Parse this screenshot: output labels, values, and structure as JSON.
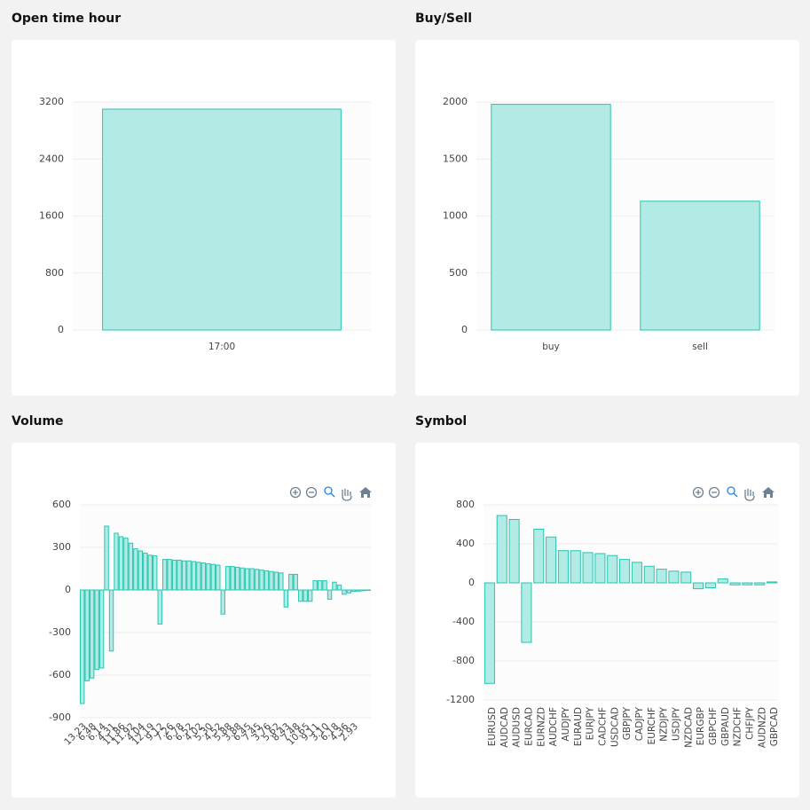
{
  "chart_data": [
    {
      "type": "bar",
      "title": "Open time hour",
      "categories": [
        "17:00"
      ],
      "values": [
        3100
      ],
      "ylim": [
        0,
        3200
      ],
      "yticks": [
        0,
        800,
        1600,
        2400,
        3200
      ],
      "color": "#b2ebe5",
      "grid": true
    },
    {
      "type": "bar",
      "title": "Buy/Sell",
      "categories": [
        "buy",
        "sell"
      ],
      "values": [
        1980,
        1130
      ],
      "ylim": [
        0,
        2000
      ],
      "yticks": [
        0,
        500,
        1000,
        1500,
        2000
      ],
      "color": "#b2ebe5",
      "grid": true
    },
    {
      "type": "bar",
      "title": "Volume",
      "categories": [
        "13.23",
        null,
        "6.48",
        null,
        "6.14",
        null,
        "4.31",
        null,
        "11.86",
        null,
        "11.92",
        null,
        "4.04",
        null,
        "12.19",
        null,
        "9.12",
        null,
        "7.26",
        null,
        "6.78",
        null,
        "6.52",
        null,
        "4.02",
        null,
        "5.30",
        null,
        "4.52",
        null,
        "5.88",
        null,
        "3.88",
        null,
        "6.45",
        null,
        "7.45",
        null,
        "3.76",
        null,
        "5.62",
        null,
        "8.43",
        null,
        "7.48",
        null,
        "10.65",
        null,
        "9.11",
        null,
        "3.10",
        null,
        "6.18",
        null,
        "4.36",
        null,
        "2.93",
        null,
        null,
        null
      ],
      "values": [
        -800,
        -640,
        -620,
        -560,
        -550,
        450,
        -430,
        400,
        375,
        365,
        330,
        290,
        275,
        260,
        245,
        240,
        -240,
        215,
        215,
        210,
        210,
        205,
        205,
        200,
        195,
        190,
        185,
        180,
        175,
        -170,
        165,
        165,
        160,
        155,
        150,
        150,
        145,
        140,
        135,
        130,
        125,
        120,
        -120,
        110,
        110,
        -80,
        -80,
        -80,
        65,
        65,
        65,
        -65,
        55,
        35,
        -30,
        -20,
        -10,
        -8,
        -5,
        -3
      ],
      "ylim": [
        -900,
        600
      ],
      "yticks": [
        -900,
        -600,
        -300,
        0,
        300,
        600
      ],
      "color": "#b2ebe5",
      "grid": true
    },
    {
      "type": "bar",
      "title": "Symbol",
      "categories": [
        "EURUSD",
        "AUDCAD",
        "AUDUSD",
        "EURCAD",
        "EURNZD",
        "AUDCHF",
        "AUDJPY",
        "EURAUD",
        "EURJPY",
        "CADCHF",
        "USDCAD",
        "GBPJPY",
        "CADJPY",
        "EURCHF",
        "NZDJPY",
        "USDJPY",
        "NZDCAD",
        "EURGBP",
        "GBPCHF",
        "GBPAUD",
        "NZDCHF",
        "CHFJPY",
        "AUDNZD",
        "GBPCAD"
      ],
      "values": [
        -1030,
        690,
        650,
        -610,
        550,
        470,
        330,
        330,
        310,
        300,
        280,
        240,
        210,
        170,
        140,
        120,
        110,
        -60,
        -50,
        40,
        -20,
        -20,
        -20,
        10
      ],
      "ylim": [
        -1200,
        800
      ],
      "yticks": [
        -1200,
        -800,
        -400,
        0,
        400,
        800
      ],
      "color": "#b2ebe5",
      "grid": true
    }
  ]
}
